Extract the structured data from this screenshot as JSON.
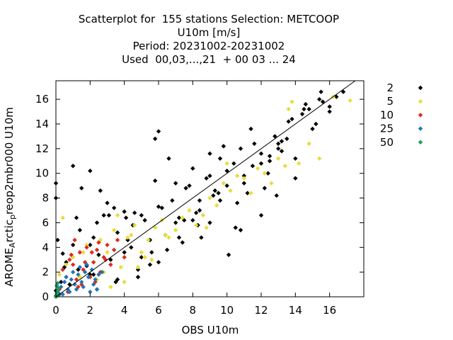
{
  "chart_data": {
    "type": "scatter",
    "title_lines": [
      "Scatterplot for  155 stations Selection: METCOOP",
      "U10m [m/s]",
      "Period: 20231002-20231002",
      "Used  00,03,...,21  + 00 03 ... 24"
    ],
    "xlabel": "OBS U10m",
    "ylabel_main": "AROME",
    "ylabel_sub": "A",
    "ylabel_rest": "rctic",
    "ylabel_sub2": "p",
    "ylabel_tail": "reop2mbr000 U10m",
    "xlim": [
      0,
      18
    ],
    "ylim": [
      0,
      17.5
    ],
    "x_ticks": [
      "0",
      "2",
      "4",
      "6",
      "8",
      "10",
      "12",
      "14",
      "16"
    ],
    "y_ticks": [
      "0",
      "2",
      "4",
      "6",
      "8",
      "10",
      "12",
      "14",
      "16"
    ],
    "reference_line": "y = x",
    "grid": false,
    "legend_position": "right",
    "series": [
      {
        "name": "2",
        "color": "#000000",
        "marker": "diamond",
        "x": [
          0.0,
          0.3,
          0.6,
          1.0,
          1.4,
          2.0,
          2.4,
          0.2,
          0.4,
          0.8,
          1.2,
          1.8,
          2.2,
          2.8,
          3.2,
          3.6,
          4.0,
          4.4,
          4.8,
          5.2,
          5.6,
          6.0,
          6.4,
          6.8,
          7.2,
          7.6,
          8.0,
          8.4,
          8.8,
          9.2,
          9.6,
          10.0,
          10.4,
          10.8,
          11.2,
          11.6,
          12.0,
          12.4,
          12.8,
          13.2,
          13.6,
          14.0,
          14.4,
          14.8,
          15.2,
          15.6,
          16.0,
          16.4,
          16.8,
          1.3,
          2.6,
          3.4,
          4.2,
          5.0,
          5.8,
          6.6,
          7.4,
          8.2,
          9.0,
          9.8,
          10.6,
          11.4,
          12.2,
          13.0,
          13.8,
          14.6,
          15.4,
          0.1,
          0.5,
          1.5,
          2.5,
          3.5,
          4.5,
          5.5,
          6.5,
          7.5,
          8.5,
          9.5,
          10.5,
          11.5,
          12.5,
          13.5,
          14.5,
          15.5,
          1.0,
          2.0,
          3.0,
          4.0,
          5.0,
          6.0,
          7.0,
          8.0,
          9.0,
          10.0,
          11.0,
          12.0,
          13.0,
          14.0,
          15.0,
          16.0,
          2.4,
          4.8,
          7.2,
          9.6,
          12.0,
          3.6,
          6.0,
          8.4,
          10.8,
          13.2,
          2.2,
          5.5,
          9.0,
          12.5,
          0.7,
          3.1,
          4.6,
          6.2,
          7.8,
          9.3,
          11.0,
          0.0,
          0.0,
          2.0,
          5.8,
          8.3,
          4.1,
          7.0,
          10.1,
          12.9
        ],
        "y": [
          0.5,
          1.2,
          2.8,
          4.2,
          5.4,
          1.8,
          6.0,
          0.2,
          3.5,
          1.0,
          6.4,
          2.5,
          4.8,
          6.6,
          3.0,
          5.2,
          6.9,
          4.0,
          2.2,
          6.2,
          3.6,
          7.3,
          5.0,
          7.8,
          6.4,
          8.8,
          10.4,
          7.0,
          9.6,
          8.2,
          11.2,
          9.0,
          10.8,
          12.0,
          8.4,
          12.4,
          11.6,
          10.0,
          13.0,
          12.6,
          14.2,
          11.2,
          14.8,
          15.2,
          14.0,
          15.8,
          15.4,
          16.2,
          16.6,
          2.2,
          8.6,
          7.2,
          4.6,
          3.2,
          9.4,
          11.2,
          4.4,
          6.8,
          9.8,
          12.2,
          7.6,
          13.6,
          8.8,
          12.0,
          14.4,
          15.6,
          16.0,
          4.6,
          2.4,
          8.8,
          3.4,
          1.2,
          5.8,
          2.6,
          3.8,
          6.2,
          4.8,
          8.4,
          5.6,
          10.6,
          11.0,
          12.8,
          15.2,
          16.6,
          10.6,
          4.2,
          7.6,
          3.6,
          6.6,
          13.4,
          9.2,
          6.2,
          11.6,
          10.2,
          9.2,
          10.8,
          12.4,
          9.6,
          13.6,
          15.0,
          0.6,
          1.6,
          4.8,
          7.8,
          6.6,
          1.4,
          2.8,
          7.8,
          5.4,
          11.8,
          1.8,
          4.6,
          6.0,
          11.4,
          0.4,
          6.6,
          6.8,
          7.2,
          9.0,
          8.6,
          9.8,
          9.2,
          8.0,
          10.2,
          12.8,
          5.8,
          6.4,
          6.0,
          3.4,
          8.2
        ]
      },
      {
        "name": "5",
        "color": "#e8dd3a",
        "marker": "diamond",
        "x": [
          0.2,
          0.6,
          1.0,
          1.4,
          1.8,
          2.2,
          2.6,
          3.0,
          3.4,
          3.8,
          4.2,
          4.6,
          5.0,
          5.4,
          5.8,
          6.2,
          6.6,
          7.0,
          7.4,
          7.8,
          8.2,
          8.6,
          9.0,
          9.4,
          9.8,
          10.2,
          10.6,
          11.0,
          11.4,
          11.8,
          12.2,
          12.6,
          13.0,
          13.4,
          13.8,
          14.2,
          14.8,
          15.4,
          16.2,
          17.2,
          1.6,
          2.4,
          3.2,
          4.0,
          4.8,
          5.6,
          6.4,
          0.4,
          3.6,
          4.4,
          5.2,
          2.8,
          8.8,
          10.0,
          13.6
        ],
        "y": [
          1.8,
          2.6,
          3.2,
          1.6,
          4.2,
          2.8,
          4.6,
          3.6,
          5.4,
          2.4,
          4.8,
          5.8,
          3.6,
          4.6,
          5.6,
          6.2,
          4.8,
          5.4,
          6.4,
          7.0,
          5.8,
          6.6,
          8.0,
          7.4,
          9.2,
          8.6,
          9.8,
          9.6,
          8.4,
          10.4,
          10.0,
          9.2,
          11.2,
          10.6,
          15.8,
          10.8,
          12.4,
          11.2,
          16.2,
          15.9,
          3.6,
          1.4,
          0.8,
          1.2,
          2.4,
          3.0,
          5.0,
          6.4,
          6.6,
          5.0,
          3.2,
          2.0,
          5.6,
          10.8,
          15.2
        ]
      },
      {
        "name": "10",
        "color": "#dd2a1e",
        "marker": "diamond",
        "x": [
          0.2,
          0.4,
          0.6,
          0.8,
          1.0,
          1.2,
          1.4,
          1.6,
          1.8,
          2.0,
          2.2,
          2.4,
          2.6,
          2.8,
          3.0,
          3.2,
          3.4,
          3.6,
          4.0,
          0.5,
          0.9,
          1.3,
          1.7,
          2.1,
          2.5,
          2.9,
          1.1,
          1.5,
          0.7,
          2.3
        ],
        "y": [
          0.6,
          2.2,
          1.6,
          3.0,
          2.6,
          1.4,
          3.6,
          2.2,
          4.0,
          1.6,
          2.8,
          3.8,
          2.0,
          3.2,
          4.2,
          2.6,
          3.8,
          4.6,
          3.2,
          1.2,
          3.4,
          0.8,
          2.8,
          3.6,
          4.4,
          3.0,
          4.6,
          1.0,
          0.4,
          1.2
        ]
      },
      {
        "name": "25",
        "color": "#1f77b4",
        "marker": "diamond",
        "x": [
          0.1,
          0.3,
          0.5,
          0.7,
          0.9,
          1.1,
          1.3,
          1.5,
          1.7,
          1.9,
          2.1,
          2.3,
          2.5,
          2.7,
          0.4,
          0.8,
          1.2,
          1.6,
          2.0,
          2.4,
          0.6,
          1.0,
          1.4,
          1.8,
          2.2
        ],
        "y": [
          0.4,
          0.8,
          1.2,
          0.6,
          1.4,
          1.0,
          1.8,
          1.2,
          2.0,
          1.6,
          2.2,
          1.4,
          1.8,
          2.0,
          0.2,
          0.4,
          0.6,
          0.8,
          0.4,
          0.6,
          1.6,
          2.0,
          2.4,
          2.6,
          1.0
        ]
      },
      {
        "name": "50",
        "color": "#1a9a6a",
        "marker": "diamond",
        "x": [
          0.0,
          0.05,
          0.1,
          0.15,
          0.05,
          0.1,
          0.0,
          0.15
        ],
        "y": [
          0.1,
          0.3,
          0.5,
          0.7,
          0.9,
          1.1,
          0.0,
          0.2
        ]
      }
    ]
  }
}
